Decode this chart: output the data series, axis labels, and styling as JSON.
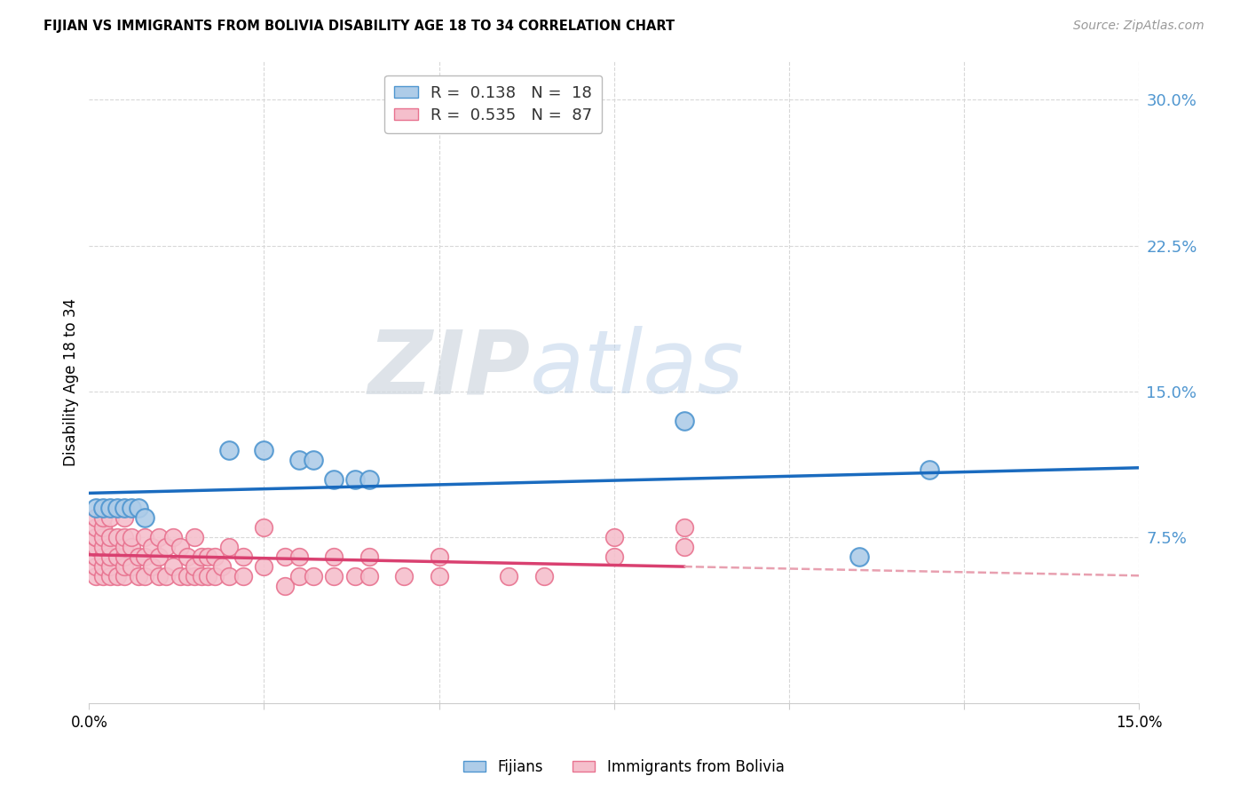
{
  "title": "FIJIAN VS IMMIGRANTS FROM BOLIVIA DISABILITY AGE 18 TO 34 CORRELATION CHART",
  "source": "Source: ZipAtlas.com",
  "ylabel": "Disability Age 18 to 34",
  "yticks": [
    "7.5%",
    "15.0%",
    "22.5%",
    "30.0%"
  ],
  "ytick_vals": [
    0.075,
    0.15,
    0.225,
    0.3
  ],
  "xmin": 0.0,
  "xmax": 0.15,
  "ymin": -0.01,
  "ymax": 0.32,
  "fijian_color": "#aecce8",
  "fijian_edge_color": "#4f96d0",
  "bolivia_color": "#f5bfcc",
  "bolivia_edge_color": "#e8728f",
  "fijian_R": 0.138,
  "fijian_N": 18,
  "bolivia_R": 0.535,
  "bolivia_N": 87,
  "regression_line_blue": "#1a6bbf",
  "regression_line_pink": "#d94070",
  "regression_line_dashed_color": "#e8a0b0",
  "fijian_x": [
    0.001,
    0.002,
    0.003,
    0.004,
    0.005,
    0.006,
    0.007,
    0.008,
    0.02,
    0.025,
    0.03,
    0.032,
    0.035,
    0.038,
    0.04,
    0.085,
    0.11,
    0.12
  ],
  "fijian_y": [
    0.09,
    0.09,
    0.09,
    0.09,
    0.09,
    0.09,
    0.09,
    0.085,
    0.12,
    0.12,
    0.115,
    0.115,
    0.105,
    0.105,
    0.105,
    0.135,
    0.065,
    0.11
  ],
  "bolivia_x": [
    0.001,
    0.001,
    0.001,
    0.001,
    0.001,
    0.001,
    0.001,
    0.001,
    0.001,
    0.002,
    0.002,
    0.002,
    0.002,
    0.002,
    0.002,
    0.002,
    0.003,
    0.003,
    0.003,
    0.003,
    0.003,
    0.003,
    0.004,
    0.004,
    0.004,
    0.005,
    0.005,
    0.005,
    0.005,
    0.005,
    0.005,
    0.006,
    0.006,
    0.006,
    0.007,
    0.007,
    0.008,
    0.008,
    0.008,
    0.009,
    0.009,
    0.01,
    0.01,
    0.01,
    0.011,
    0.011,
    0.012,
    0.012,
    0.013,
    0.013,
    0.014,
    0.014,
    0.015,
    0.015,
    0.015,
    0.016,
    0.016,
    0.017,
    0.017,
    0.018,
    0.018,
    0.019,
    0.02,
    0.02,
    0.022,
    0.022,
    0.025,
    0.025,
    0.028,
    0.028,
    0.03,
    0.03,
    0.032,
    0.035,
    0.035,
    0.038,
    0.04,
    0.04,
    0.045,
    0.05,
    0.05,
    0.06,
    0.065,
    0.075,
    0.075,
    0.085,
    0.085
  ],
  "bolivia_y": [
    0.055,
    0.06,
    0.065,
    0.07,
    0.07,
    0.075,
    0.075,
    0.08,
    0.085,
    0.055,
    0.06,
    0.065,
    0.07,
    0.075,
    0.08,
    0.085,
    0.055,
    0.06,
    0.065,
    0.07,
    0.075,
    0.085,
    0.055,
    0.065,
    0.075,
    0.055,
    0.06,
    0.065,
    0.07,
    0.075,
    0.085,
    0.06,
    0.07,
    0.075,
    0.055,
    0.065,
    0.055,
    0.065,
    0.075,
    0.06,
    0.07,
    0.055,
    0.065,
    0.075,
    0.055,
    0.07,
    0.06,
    0.075,
    0.055,
    0.07,
    0.055,
    0.065,
    0.055,
    0.06,
    0.075,
    0.055,
    0.065,
    0.055,
    0.065,
    0.055,
    0.065,
    0.06,
    0.055,
    0.07,
    0.055,
    0.065,
    0.06,
    0.08,
    0.05,
    0.065,
    0.055,
    0.065,
    0.055,
    0.055,
    0.065,
    0.055,
    0.055,
    0.065,
    0.055,
    0.055,
    0.065,
    0.055,
    0.055,
    0.065,
    0.075,
    0.07,
    0.08
  ],
  "watermark_zip": "ZIP",
  "watermark_atlas": "atlas",
  "background_color": "#ffffff",
  "grid_color": "#d8d8d8"
}
